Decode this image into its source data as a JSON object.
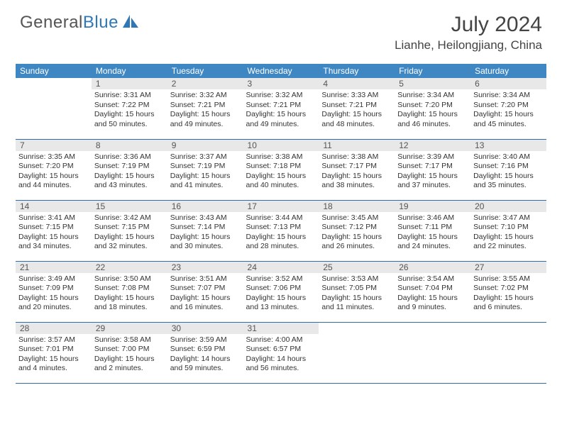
{
  "brand": {
    "part1": "General",
    "part2": "Blue"
  },
  "title": "July 2024",
  "location": "Lianhe, Heilongjiang, China",
  "colors": {
    "header_bg": "#3e87c3",
    "header_text": "#ffffff",
    "daynum_bg": "#e8e8e8",
    "border": "#2f6da3",
    "brand_gray": "#555555",
    "brand_blue": "#2f78b7"
  },
  "weekdays": [
    "Sunday",
    "Monday",
    "Tuesday",
    "Wednesday",
    "Thursday",
    "Friday",
    "Saturday"
  ],
  "weeks": [
    [
      null,
      {
        "n": "1",
        "sr": "3:31 AM",
        "ss": "7:22 PM",
        "dl": "15 hours and 50 minutes."
      },
      {
        "n": "2",
        "sr": "3:32 AM",
        "ss": "7:21 PM",
        "dl": "15 hours and 49 minutes."
      },
      {
        "n": "3",
        "sr": "3:32 AM",
        "ss": "7:21 PM",
        "dl": "15 hours and 49 minutes."
      },
      {
        "n": "4",
        "sr": "3:33 AM",
        "ss": "7:21 PM",
        "dl": "15 hours and 48 minutes."
      },
      {
        "n": "5",
        "sr": "3:34 AM",
        "ss": "7:20 PM",
        "dl": "15 hours and 46 minutes."
      },
      {
        "n": "6",
        "sr": "3:34 AM",
        "ss": "7:20 PM",
        "dl": "15 hours and 45 minutes."
      }
    ],
    [
      {
        "n": "7",
        "sr": "3:35 AM",
        "ss": "7:20 PM",
        "dl": "15 hours and 44 minutes."
      },
      {
        "n": "8",
        "sr": "3:36 AM",
        "ss": "7:19 PM",
        "dl": "15 hours and 43 minutes."
      },
      {
        "n": "9",
        "sr": "3:37 AM",
        "ss": "7:19 PM",
        "dl": "15 hours and 41 minutes."
      },
      {
        "n": "10",
        "sr": "3:38 AM",
        "ss": "7:18 PM",
        "dl": "15 hours and 40 minutes."
      },
      {
        "n": "11",
        "sr": "3:38 AM",
        "ss": "7:17 PM",
        "dl": "15 hours and 38 minutes."
      },
      {
        "n": "12",
        "sr": "3:39 AM",
        "ss": "7:17 PM",
        "dl": "15 hours and 37 minutes."
      },
      {
        "n": "13",
        "sr": "3:40 AM",
        "ss": "7:16 PM",
        "dl": "15 hours and 35 minutes."
      }
    ],
    [
      {
        "n": "14",
        "sr": "3:41 AM",
        "ss": "7:15 PM",
        "dl": "15 hours and 34 minutes."
      },
      {
        "n": "15",
        "sr": "3:42 AM",
        "ss": "7:15 PM",
        "dl": "15 hours and 32 minutes."
      },
      {
        "n": "16",
        "sr": "3:43 AM",
        "ss": "7:14 PM",
        "dl": "15 hours and 30 minutes."
      },
      {
        "n": "17",
        "sr": "3:44 AM",
        "ss": "7:13 PM",
        "dl": "15 hours and 28 minutes."
      },
      {
        "n": "18",
        "sr": "3:45 AM",
        "ss": "7:12 PM",
        "dl": "15 hours and 26 minutes."
      },
      {
        "n": "19",
        "sr": "3:46 AM",
        "ss": "7:11 PM",
        "dl": "15 hours and 24 minutes."
      },
      {
        "n": "20",
        "sr": "3:47 AM",
        "ss": "7:10 PM",
        "dl": "15 hours and 22 minutes."
      }
    ],
    [
      {
        "n": "21",
        "sr": "3:49 AM",
        "ss": "7:09 PM",
        "dl": "15 hours and 20 minutes."
      },
      {
        "n": "22",
        "sr": "3:50 AM",
        "ss": "7:08 PM",
        "dl": "15 hours and 18 minutes."
      },
      {
        "n": "23",
        "sr": "3:51 AM",
        "ss": "7:07 PM",
        "dl": "15 hours and 16 minutes."
      },
      {
        "n": "24",
        "sr": "3:52 AM",
        "ss": "7:06 PM",
        "dl": "15 hours and 13 minutes."
      },
      {
        "n": "25",
        "sr": "3:53 AM",
        "ss": "7:05 PM",
        "dl": "15 hours and 11 minutes."
      },
      {
        "n": "26",
        "sr": "3:54 AM",
        "ss": "7:04 PM",
        "dl": "15 hours and 9 minutes."
      },
      {
        "n": "27",
        "sr": "3:55 AM",
        "ss": "7:02 PM",
        "dl": "15 hours and 6 minutes."
      }
    ],
    [
      {
        "n": "28",
        "sr": "3:57 AM",
        "ss": "7:01 PM",
        "dl": "15 hours and 4 minutes."
      },
      {
        "n": "29",
        "sr": "3:58 AM",
        "ss": "7:00 PM",
        "dl": "15 hours and 2 minutes."
      },
      {
        "n": "30",
        "sr": "3:59 AM",
        "ss": "6:59 PM",
        "dl": "14 hours and 59 minutes."
      },
      {
        "n": "31",
        "sr": "4:00 AM",
        "ss": "6:57 PM",
        "dl": "14 hours and 56 minutes."
      },
      null,
      null,
      null
    ]
  ],
  "labels": {
    "sunrise": "Sunrise:",
    "sunset": "Sunset:",
    "daylight": "Daylight:"
  }
}
